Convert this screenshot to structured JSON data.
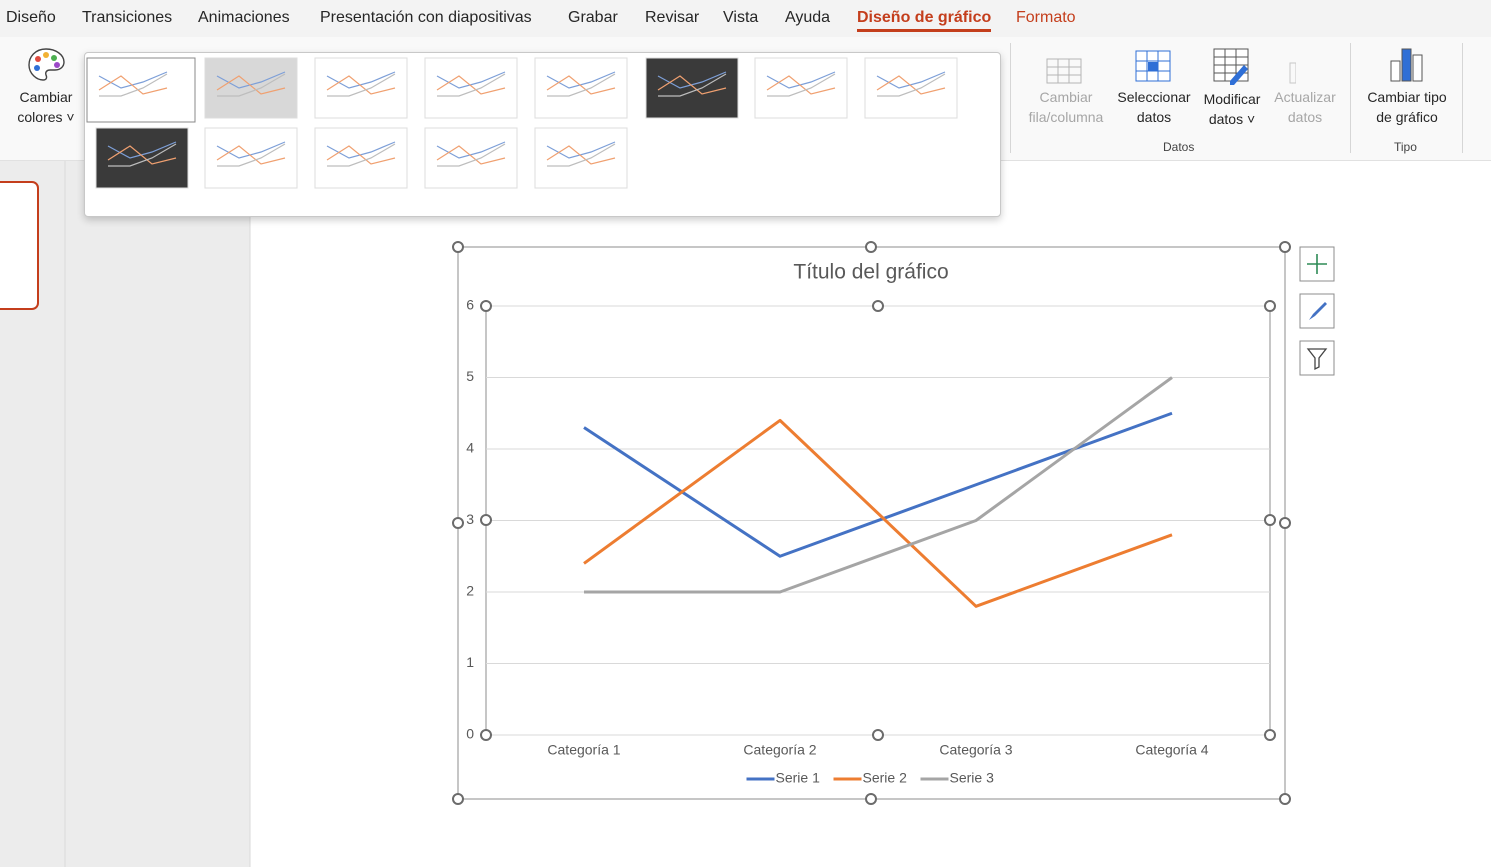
{
  "tabs": [
    "Diseño",
    "Transiciones",
    "Animaciones",
    "Presentación con diapositivas",
    "Grabar",
    "Revisar",
    "Vista",
    "Ayuda",
    "Diseño de gráfico",
    "Formato"
  ],
  "ribbon": {
    "change_colors": [
      "Cambiar",
      "colores"
    ],
    "data_buttons": [
      [
        "Cambiar",
        "fila/columna"
      ],
      [
        "Seleccionar",
        "datos"
      ],
      [
        "Modificar",
        "datos"
      ],
      [
        "Actualizar",
        "datos"
      ]
    ],
    "data_group": "Datos",
    "type_button": [
      "Cambiar tipo",
      "de gráfico"
    ],
    "type_group": "Tipo"
  },
  "chart_data": {
    "type": "line",
    "title": "Título del gráfico",
    "categories": [
      "Categoría 1",
      "Categoría 2",
      "Categoría 3",
      "Categoría 4"
    ],
    "series": [
      {
        "name": "Serie 1",
        "color": "#4472c4",
        "values": [
          4.3,
          2.5,
          3.5,
          4.5
        ]
      },
      {
        "name": "Serie 2",
        "color": "#ed7d31",
        "values": [
          2.4,
          4.4,
          1.8,
          2.8
        ]
      },
      {
        "name": "Serie 3",
        "color": "#a5a5a5",
        "values": [
          2,
          2,
          3,
          5
        ]
      }
    ],
    "ylim": [
      0,
      6
    ],
    "yticks": [
      0,
      1,
      2,
      3,
      4,
      5,
      6
    ],
    "grid": true,
    "legend": "bottom"
  }
}
